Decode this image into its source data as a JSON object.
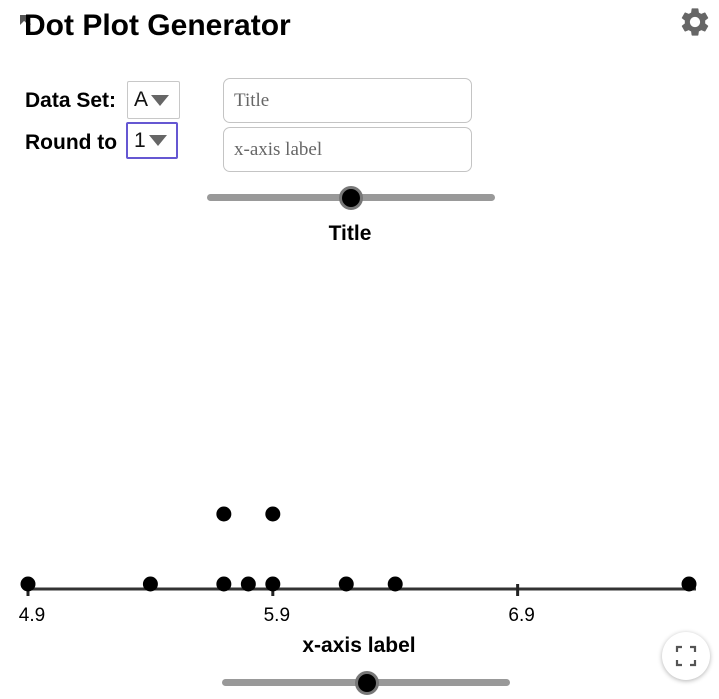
{
  "app": {
    "title": "Dot Plot Generator",
    "icons": {
      "undo": "undo-arrow-icon",
      "settings": "gear-icon",
      "fullscreen": "fullscreen-icon"
    }
  },
  "controls": {
    "dataset_label": "Data Set:",
    "dataset_value": "A",
    "round_label": "Round to",
    "round_value": "1",
    "title_placeholder": "Title",
    "xlabel_placeholder": "x-axis label",
    "title_input_value": "",
    "xlabel_input_value": ""
  },
  "colors": {
    "accent": "#6557d2",
    "slider_track": "#999999",
    "dot": "#000000",
    "axis": "#333333"
  },
  "chart_data": {
    "type": "scatter",
    "title": "Title",
    "xlabel": "x-axis label",
    "xlim": [
      4.9,
      7.6
    ],
    "ticks": [
      4.9,
      5.9,
      6.9
    ],
    "tick_labels": [
      "4.9",
      "5.9",
      "6.9"
    ],
    "points": [
      {
        "x": 4.9,
        "y": 1
      },
      {
        "x": 5.4,
        "y": 1
      },
      {
        "x": 5.7,
        "y": 1
      },
      {
        "x": 5.7,
        "y": 2
      },
      {
        "x": 5.8,
        "y": 1
      },
      {
        "x": 5.9,
        "y": 1
      },
      {
        "x": 5.9,
        "y": 2
      },
      {
        "x": 6.2,
        "y": 1
      },
      {
        "x": 6.4,
        "y": 1
      },
      {
        "x": 7.6,
        "y": 1
      }
    ]
  }
}
